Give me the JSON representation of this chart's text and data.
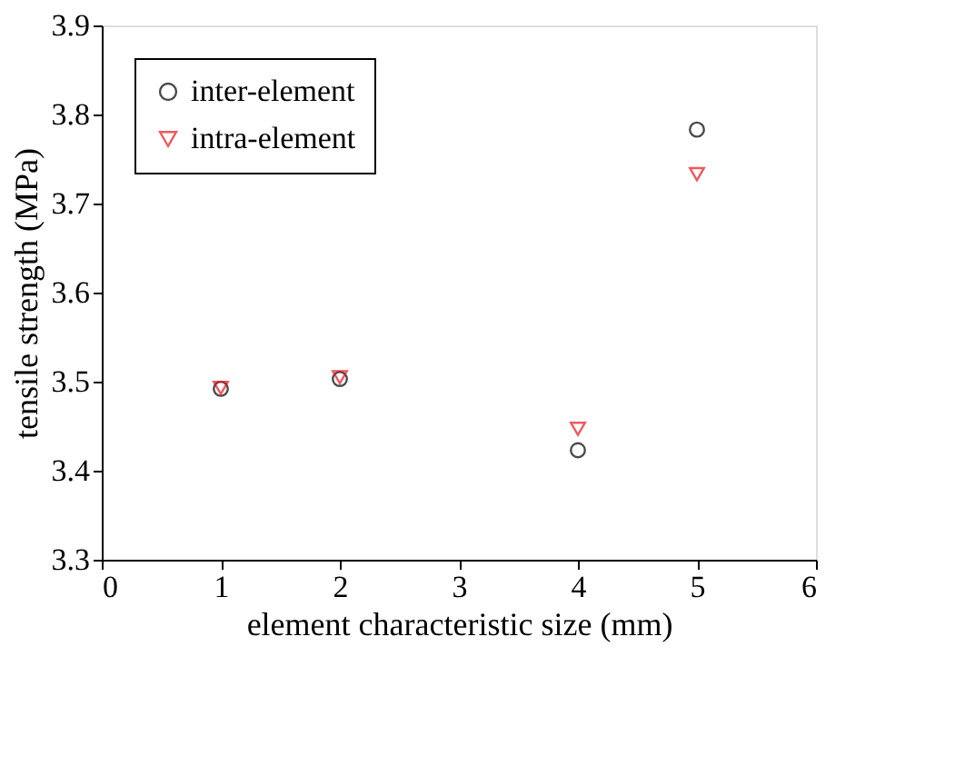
{
  "chart_data": {
    "type": "scatter",
    "xlabel": "element characteristic size (mm)",
    "ylabel": "tensile strength (MPa)",
    "x": [
      1,
      2,
      4,
      5
    ],
    "series": [
      {
        "name": "inter-element",
        "color": "#000000",
        "marker": "circle",
        "values": [
          3.492,
          3.503,
          3.423,
          3.783
        ]
      },
      {
        "name": "intra-element",
        "color": "#e8141c",
        "marker": "triangle",
        "values": [
          3.493,
          3.505,
          3.447,
          3.733
        ]
      }
    ],
    "xlim": [
      0,
      6
    ],
    "xticks": [
      0,
      1,
      2,
      3,
      4,
      5,
      6
    ],
    "ylim": [
      3.3,
      3.9
    ],
    "yticks": [
      3.3,
      3.4,
      3.5,
      3.6,
      3.7,
      3.8,
      3.9
    ],
    "grid": false,
    "legend": "top left"
  }
}
